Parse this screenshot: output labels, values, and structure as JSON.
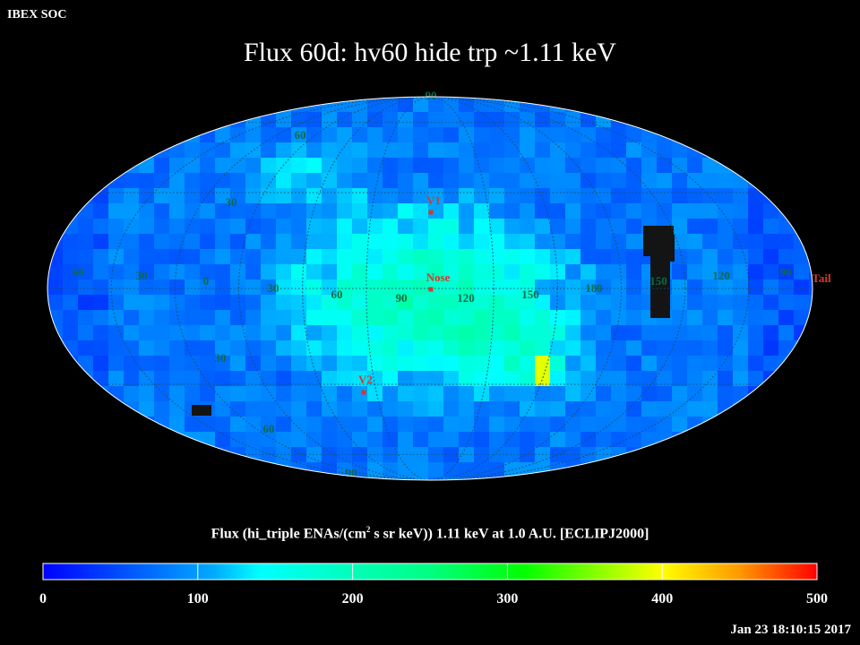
{
  "corner_label": "IBEX SOC",
  "title": "Flux   60d: hv60 hide trp ~1.11 keV",
  "colorbar": {
    "title_prefix": "Flux (hi_triple ENAs/(cm",
    "title_sup": "2",
    "title_suffix": " s sr keV))  1.11 keV at 1.0 A.U. [ECLIPJ2000]",
    "ticks": [
      "0",
      "100",
      "200",
      "300",
      "400",
      "500"
    ],
    "range": [
      0,
      500
    ],
    "colors": [
      "#0000ff",
      "#00ffff",
      "#00ff00",
      "#ffff00",
      "#ff0000"
    ]
  },
  "timestamp": "Jan 23 18:10:15 2017",
  "markers": [
    {
      "label": "V1",
      "lon": 255,
      "lat": 34,
      "color": "#d23b2b"
    },
    {
      "label": "Nose",
      "lon": 255,
      "lat": 5,
      "color": "#d23b2b"
    },
    {
      "label": "V2",
      "lon": 290,
      "lat": -32,
      "color": "#d23b2b"
    },
    {
      "label": "Tail",
      "lon": 75,
      "lat": -5,
      "color": "#d23b2b"
    }
  ],
  "grid_labels": {
    "longitude": [
      "60",
      "30",
      "0",
      "30",
      "60",
      "90",
      "120",
      "150",
      "180",
      "150",
      "120",
      "90"
    ],
    "latitude": [
      "90",
      "60",
      "30",
      "30",
      "60",
      "90"
    ]
  },
  "chart_data": {
    "type": "heatmap",
    "projection": "Mollweide",
    "coordinate_frame": "ECLIPJ2000",
    "quantity": "Flux",
    "units": "hi_triple ENAs/(cm^2 s sr keV)",
    "energy": "1.11 keV",
    "distance": "1.0 A.U.",
    "color_range": [
      0,
      500
    ],
    "regions": [
      {
        "name": "background",
        "flux": 70
      },
      {
        "name": "central ribbon",
        "flux": 200
      },
      {
        "name": "hot spot",
        "flux": 390
      },
      {
        "name": "no data (black)",
        "flux": null
      }
    ]
  }
}
